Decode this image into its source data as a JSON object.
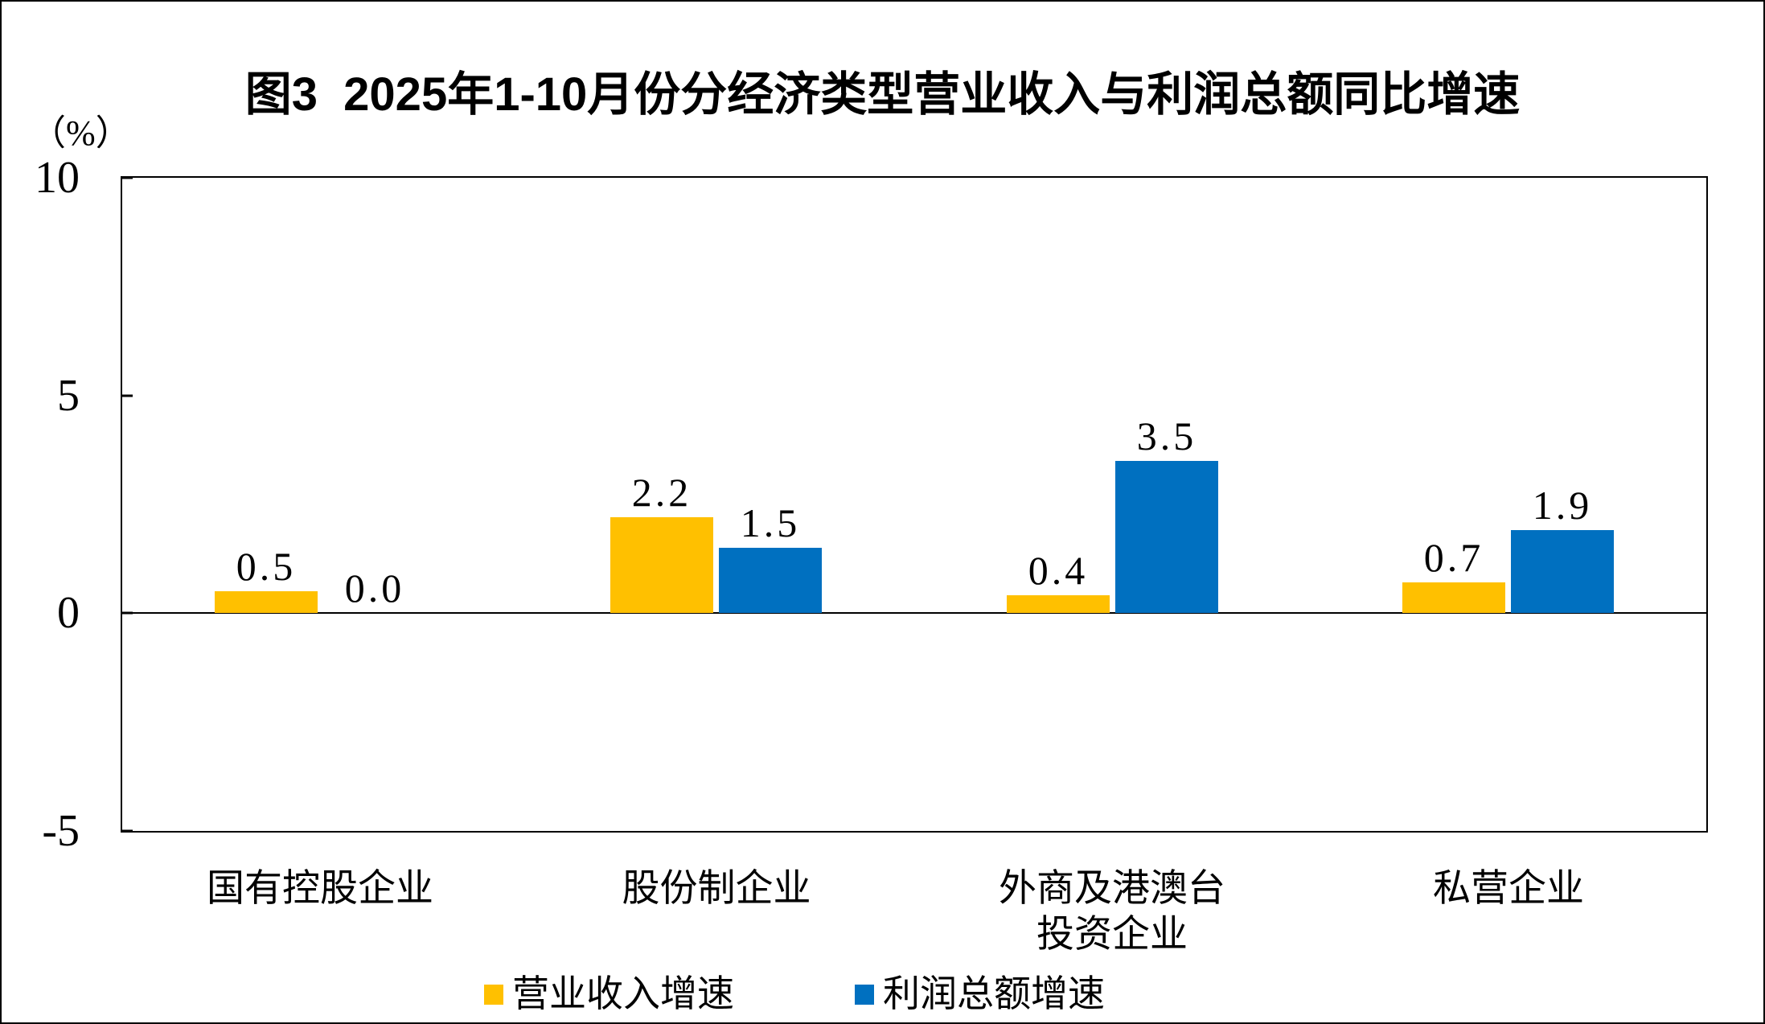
{
  "chart_data": {
    "type": "bar",
    "title": "图3  2025年1-10月份分经济类型营业收入与利润总额同比增速",
    "unit_label": "（%）",
    "categories": [
      "国有控股企业",
      "股份制企业",
      "外商及港澳台投资企业",
      "私营企业"
    ],
    "category_label_lines": [
      [
        "国有控股企业"
      ],
      [
        "股份制企业"
      ],
      [
        "外商及港澳台",
        "投资企业"
      ],
      [
        "私营企业"
      ]
    ],
    "series": [
      {
        "name": "营业收入增速",
        "color": "#FFC000",
        "values": [
          0.5,
          2.2,
          0.4,
          0.7
        ]
      },
      {
        "name": "利润总额增速",
        "color": "#0070C0",
        "values": [
          0.0,
          1.5,
          3.5,
          1.9
        ]
      }
    ],
    "ylim": [
      -5,
      10
    ],
    "y_ticks": [
      10,
      5,
      0,
      -5
    ],
    "value_label_decimals": 1,
    "grid": "none",
    "legend_position": "bottom",
    "colors": {
      "bar_revenue": "#FFC000",
      "bar_profit": "#0070C0",
      "axis": "#000000",
      "background": "#FFFFFF"
    }
  }
}
